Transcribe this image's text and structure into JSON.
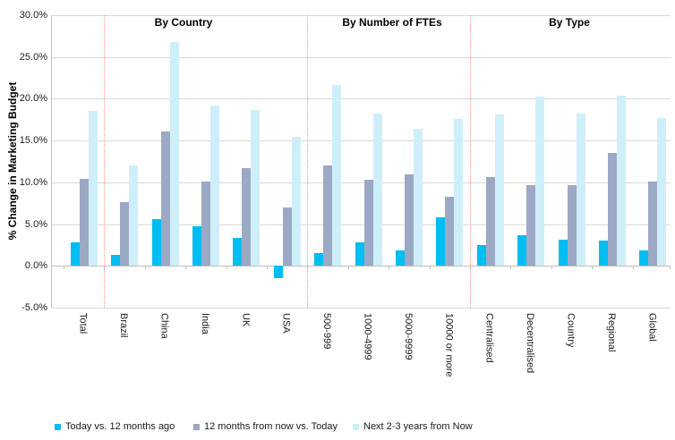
{
  "chart_data": {
    "type": "bar",
    "title": "",
    "ylabel": "% Change in Marketing Budget",
    "xlabel": "",
    "ylim": [
      -5,
      30
    ],
    "ytick_step": 5,
    "ytick_labels": [
      "30.0%",
      "25.0%",
      "20.0%",
      "15.0%",
      "10.0%",
      "5.0%",
      "0.0%",
      "-5.0%"
    ],
    "grid": true,
    "legend_position": "bottom",
    "categories": [
      "Total",
      "Brazil",
      "China",
      "India",
      "UK",
      "USA",
      "500-999",
      "1000-4999",
      "5000-9999",
      "10000 or more",
      "Centralised",
      "Decentralised",
      "Country",
      "Regional",
      "Global"
    ],
    "series": [
      {
        "name": "Today vs. 12 months ago",
        "color": "#00BDF2",
        "values": [
          2.8,
          1.3,
          5.6,
          4.7,
          3.4,
          -1.5,
          1.5,
          2.8,
          1.9,
          5.8,
          2.5,
          3.7,
          3.1,
          3.0,
          1.8
        ]
      },
      {
        "name": "12 months from now vs. Today",
        "color": "#9BA9C5",
        "values": [
          10.4,
          7.6,
          16.1,
          10.1,
          11.7,
          7.0,
          12.0,
          10.3,
          10.9,
          8.3,
          10.6,
          9.7,
          9.7,
          13.5,
          10.1
        ]
      },
      {
        "name": "Next 2-3 years from Now",
        "color": "#CEEFFA",
        "values": [
          18.5,
          12.0,
          26.8,
          19.2,
          18.7,
          15.4,
          21.7,
          18.2,
          16.4,
          17.6,
          18.1,
          20.3,
          18.2,
          20.4,
          17.7
        ]
      }
    ],
    "sections": [
      {
        "label": "By Country"
      },
      {
        "label": "By Number of FTEs"
      },
      {
        "label": "By Type"
      }
    ],
    "divider_color": "#FF8B8B",
    "gridline_color": "#D9D9D9"
  }
}
